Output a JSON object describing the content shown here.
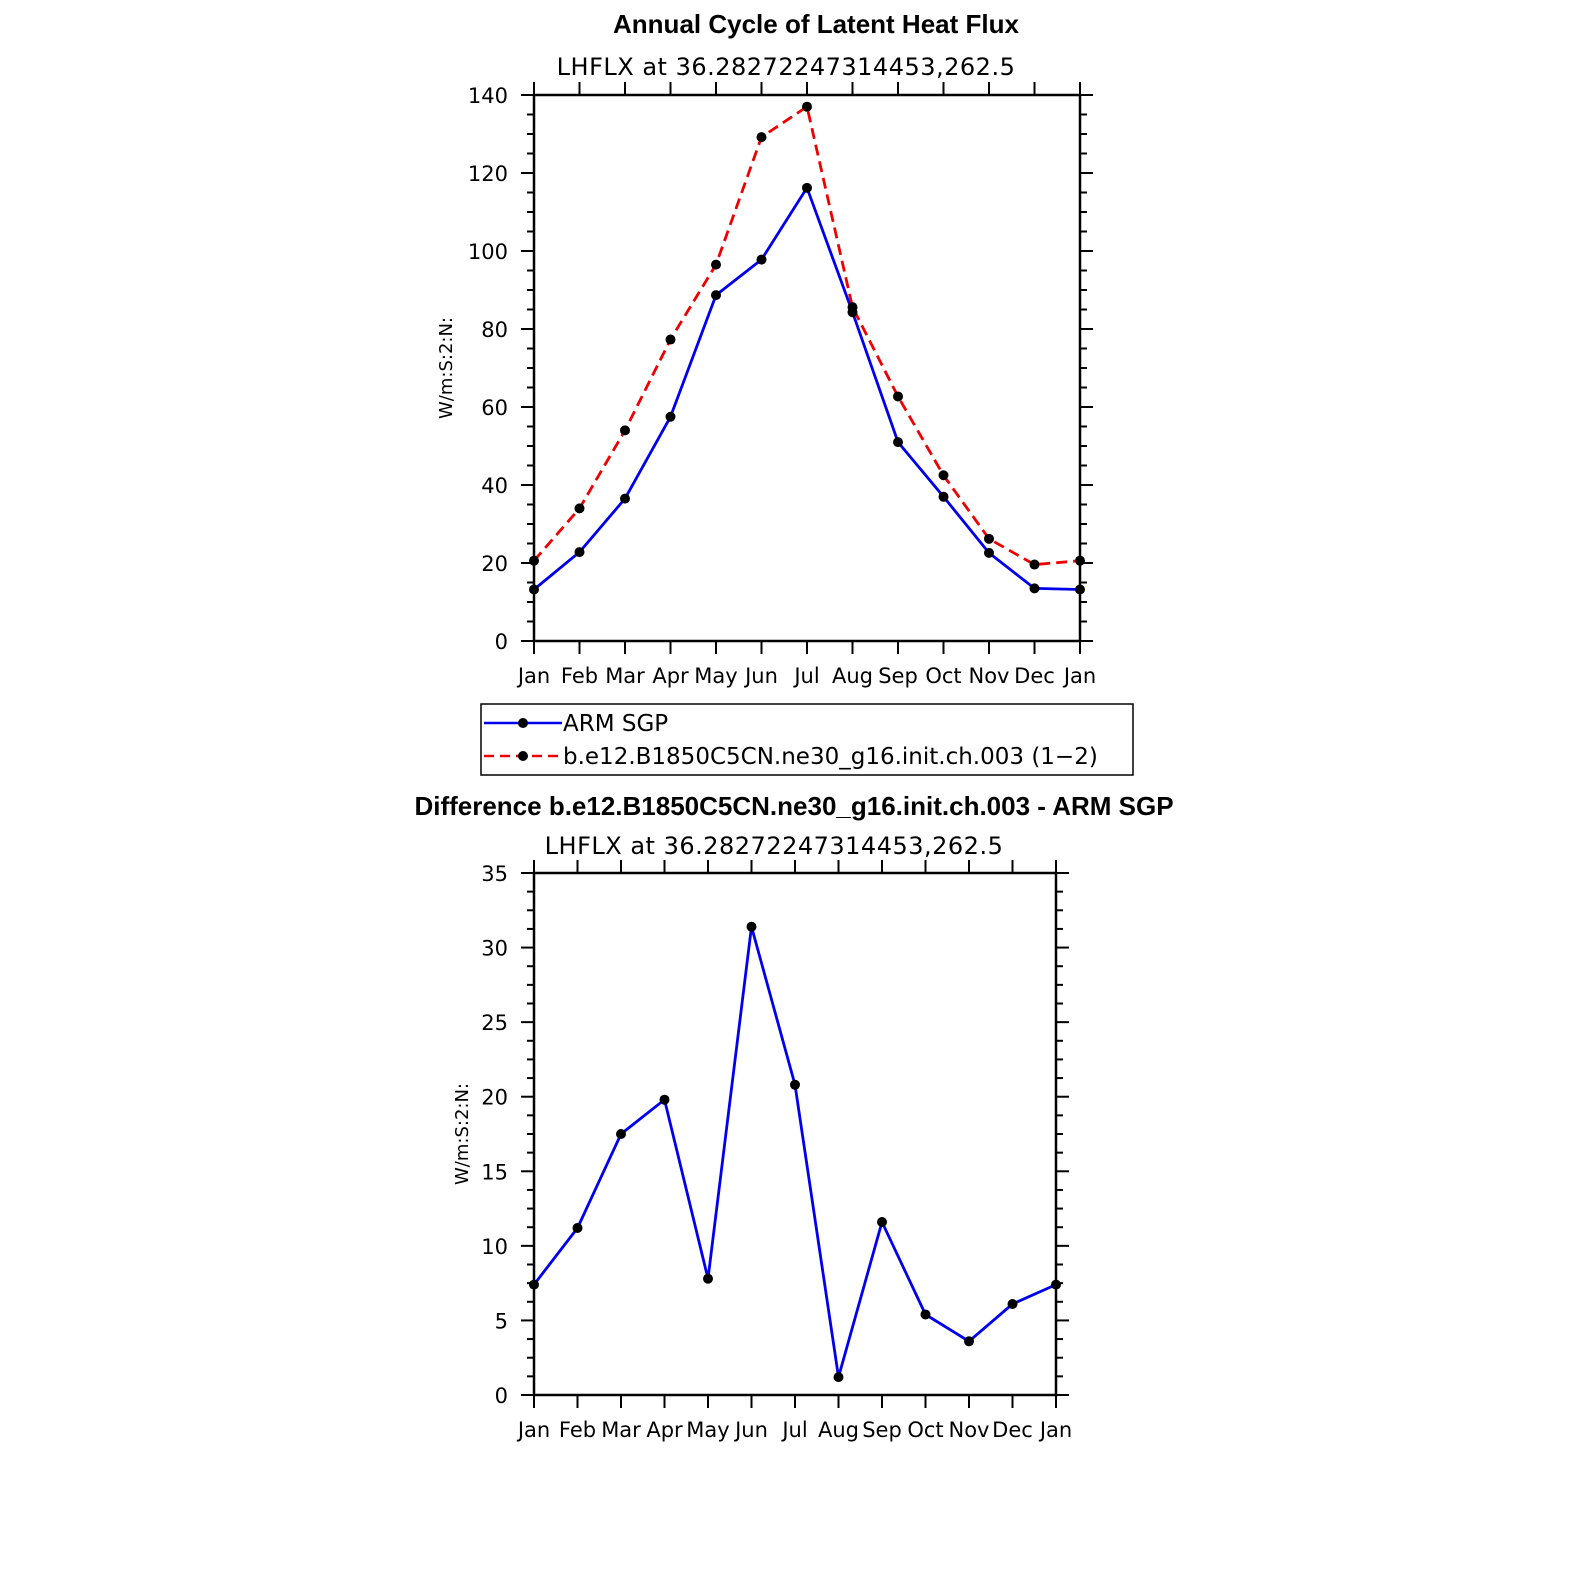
{
  "chart_data": [
    {
      "type": "line",
      "title": "Annual Cycle of Latent Heat Flux",
      "subtitle": "LHFLX at 36.28272247314453,262.5",
      "ylabel": "W/m:S:2:N:",
      "xlabel": "",
      "categories": [
        "Jan",
        "Feb",
        "Mar",
        "Apr",
        "May",
        "Jun",
        "Jul",
        "Aug",
        "Sep",
        "Oct",
        "Nov",
        "Dec",
        "Jan"
      ],
      "ylim": [
        0,
        140
      ],
      "yticks": [
        0,
        20,
        40,
        60,
        80,
        100,
        120,
        140
      ],
      "grid": false,
      "legend_position": "bottom",
      "series": [
        {
          "name": "ARM SGP",
          "color": "#0000ee",
          "dash": "solid",
          "values": [
            13.2,
            22.8,
            36.5,
            57.5,
            88.7,
            97.8,
            116.2,
            84.3,
            51.0,
            37.0,
            22.6,
            13.5,
            13.2
          ]
        },
        {
          "name": "b.e12.B1850C5CN.ne30_g16.init.ch.003 (1−2)",
          "color": "#ee0000",
          "dash": "dashed",
          "values": [
            20.6,
            34.0,
            54.0,
            77.3,
            96.5,
            129.2,
            137.0,
            85.6,
            62.7,
            42.5,
            26.2,
            19.6,
            20.6
          ]
        }
      ]
    },
    {
      "type": "line",
      "title": "Difference b.e12.B1850C5CN.ne30_g16.init.ch.003 - ARM SGP",
      "subtitle": "LHFLX at 36.28272247314453,262.5",
      "ylabel": "W/m:S:2:N:",
      "xlabel": "",
      "categories": [
        "Jan",
        "Feb",
        "Mar",
        "Apr",
        "May",
        "Jun",
        "Jul",
        "Aug",
        "Sep",
        "Oct",
        "Nov",
        "Dec",
        "Jan"
      ],
      "ylim": [
        0,
        35
      ],
      "yticks": [
        0,
        5,
        10,
        15,
        20,
        25,
        30,
        35
      ],
      "grid": false,
      "series": [
        {
          "name": "",
          "color": "#0000ee",
          "dash": "solid",
          "values": [
            7.4,
            11.2,
            17.5,
            19.8,
            7.8,
            31.4,
            20.8,
            1.2,
            11.6,
            5.4,
            3.6,
            6.1,
            7.4
          ]
        }
      ]
    }
  ]
}
